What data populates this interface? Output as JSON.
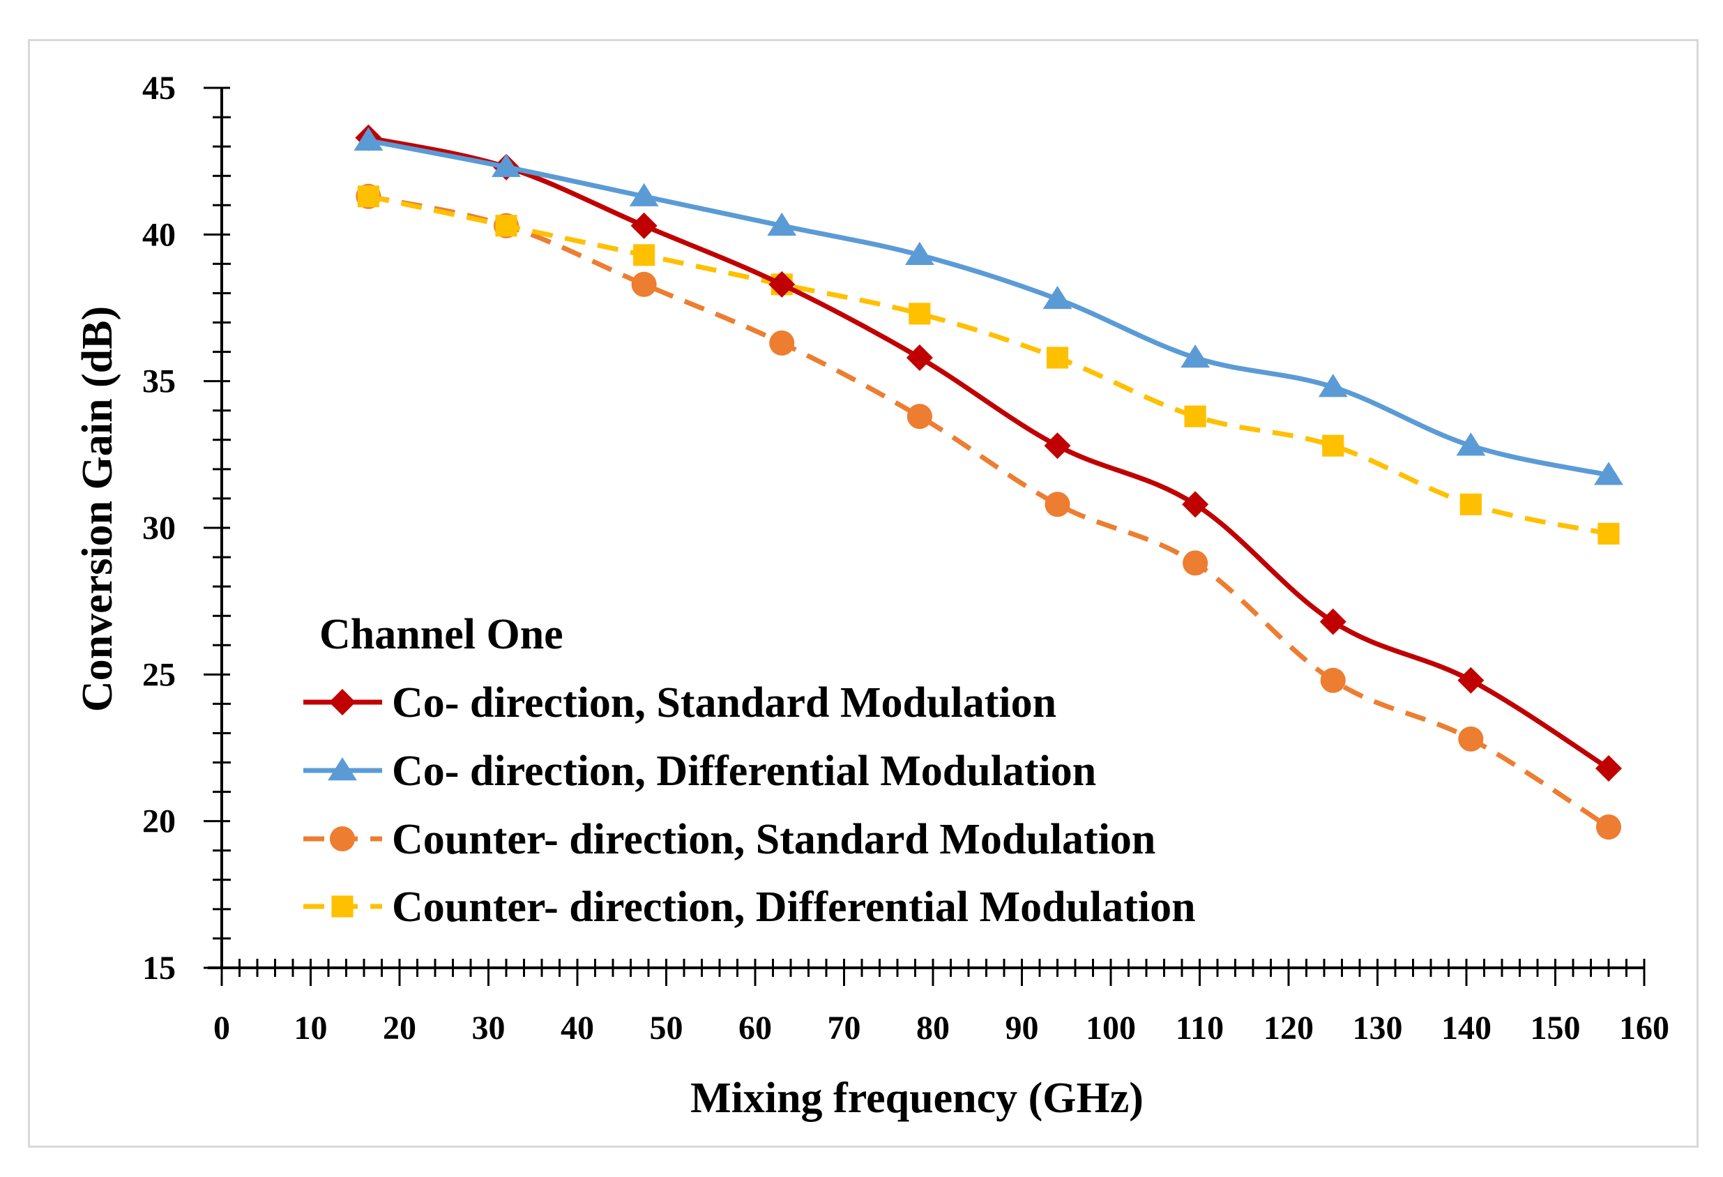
{
  "chart_data": {
    "type": "line",
    "xlabel": "Mixing frequency (GHz)",
    "ylabel": "Conversion Gain (dB)",
    "xlim": [
      0,
      160
    ],
    "ylim": [
      15,
      45
    ],
    "x_ticks": [
      0,
      10,
      20,
      30,
      40,
      50,
      60,
      70,
      80,
      90,
      100,
      110,
      120,
      130,
      140,
      150,
      160
    ],
    "y_ticks": [
      15,
      20,
      25,
      30,
      35,
      40,
      45
    ],
    "x_minor_step": 2,
    "y_minor_step": 1,
    "grid": false,
    "legend_title": "Channel One",
    "legend_position": "lower-left",
    "x": [
      16.5,
      32,
      47.5,
      63,
      78.5,
      94,
      109.5,
      125,
      140.5,
      156
    ],
    "series": [
      {
        "name": "Co- direction, Standard Modulation",
        "color": "#c00000",
        "marker": "diamond",
        "dash": "solid",
        "values": [
          43.3,
          42.3,
          40.3,
          38.3,
          35.8,
          32.8,
          30.8,
          26.8,
          24.8,
          21.8
        ]
      },
      {
        "name": "Co- direction, Differential Modulation",
        "color": "#5b9bd5",
        "marker": "triangle",
        "dash": "solid",
        "values": [
          43.2,
          42.3,
          41.3,
          40.3,
          39.3,
          37.8,
          35.8,
          34.8,
          32.8,
          31.8
        ]
      },
      {
        "name": "Counter- direction, Standard Modulation",
        "color": "#ed7d31",
        "marker": "circle",
        "dash": "dashed",
        "values": [
          41.3,
          40.3,
          38.3,
          36.3,
          33.8,
          30.8,
          28.8,
          24.8,
          22.8,
          19.8
        ]
      },
      {
        "name": "Counter- direction, Differential Modulation",
        "color": "#ffc000",
        "marker": "square",
        "dash": "dashed",
        "values": [
          41.3,
          40.3,
          39.3,
          38.3,
          37.3,
          35.8,
          33.8,
          32.8,
          30.8,
          29.8
        ]
      }
    ]
  }
}
